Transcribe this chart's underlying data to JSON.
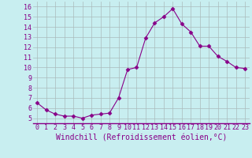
{
  "x": [
    0,
    1,
    2,
    3,
    4,
    5,
    6,
    7,
    8,
    9,
    10,
    11,
    12,
    13,
    14,
    15,
    16,
    17,
    18,
    19,
    20,
    21,
    22,
    23
  ],
  "y": [
    6.5,
    5.8,
    5.4,
    5.2,
    5.2,
    5.0,
    5.3,
    5.4,
    5.5,
    7.0,
    9.8,
    10.0,
    12.9,
    14.4,
    15.0,
    15.8,
    14.3,
    13.5,
    12.1,
    12.1,
    11.1,
    10.6,
    10.0,
    9.9
  ],
  "line_color": "#880088",
  "marker": "D",
  "marker_size": 2.5,
  "bg_color": "#c8eef0",
  "grid_color": "#aabbbb",
  "xlabel": "Windchill (Refroidissement éolien,°C)",
  "xlabel_color": "#880088",
  "xlabel_fontsize": 7,
  "yticks": [
    5,
    6,
    7,
    8,
    9,
    10,
    11,
    12,
    13,
    14,
    15,
    16
  ],
  "xlim": [
    -0.5,
    23.5
  ],
  "ylim": [
    4.5,
    16.5
  ],
  "tick_fontsize": 6,
  "tick_color": "#880088",
  "spine_color": "#880088"
}
